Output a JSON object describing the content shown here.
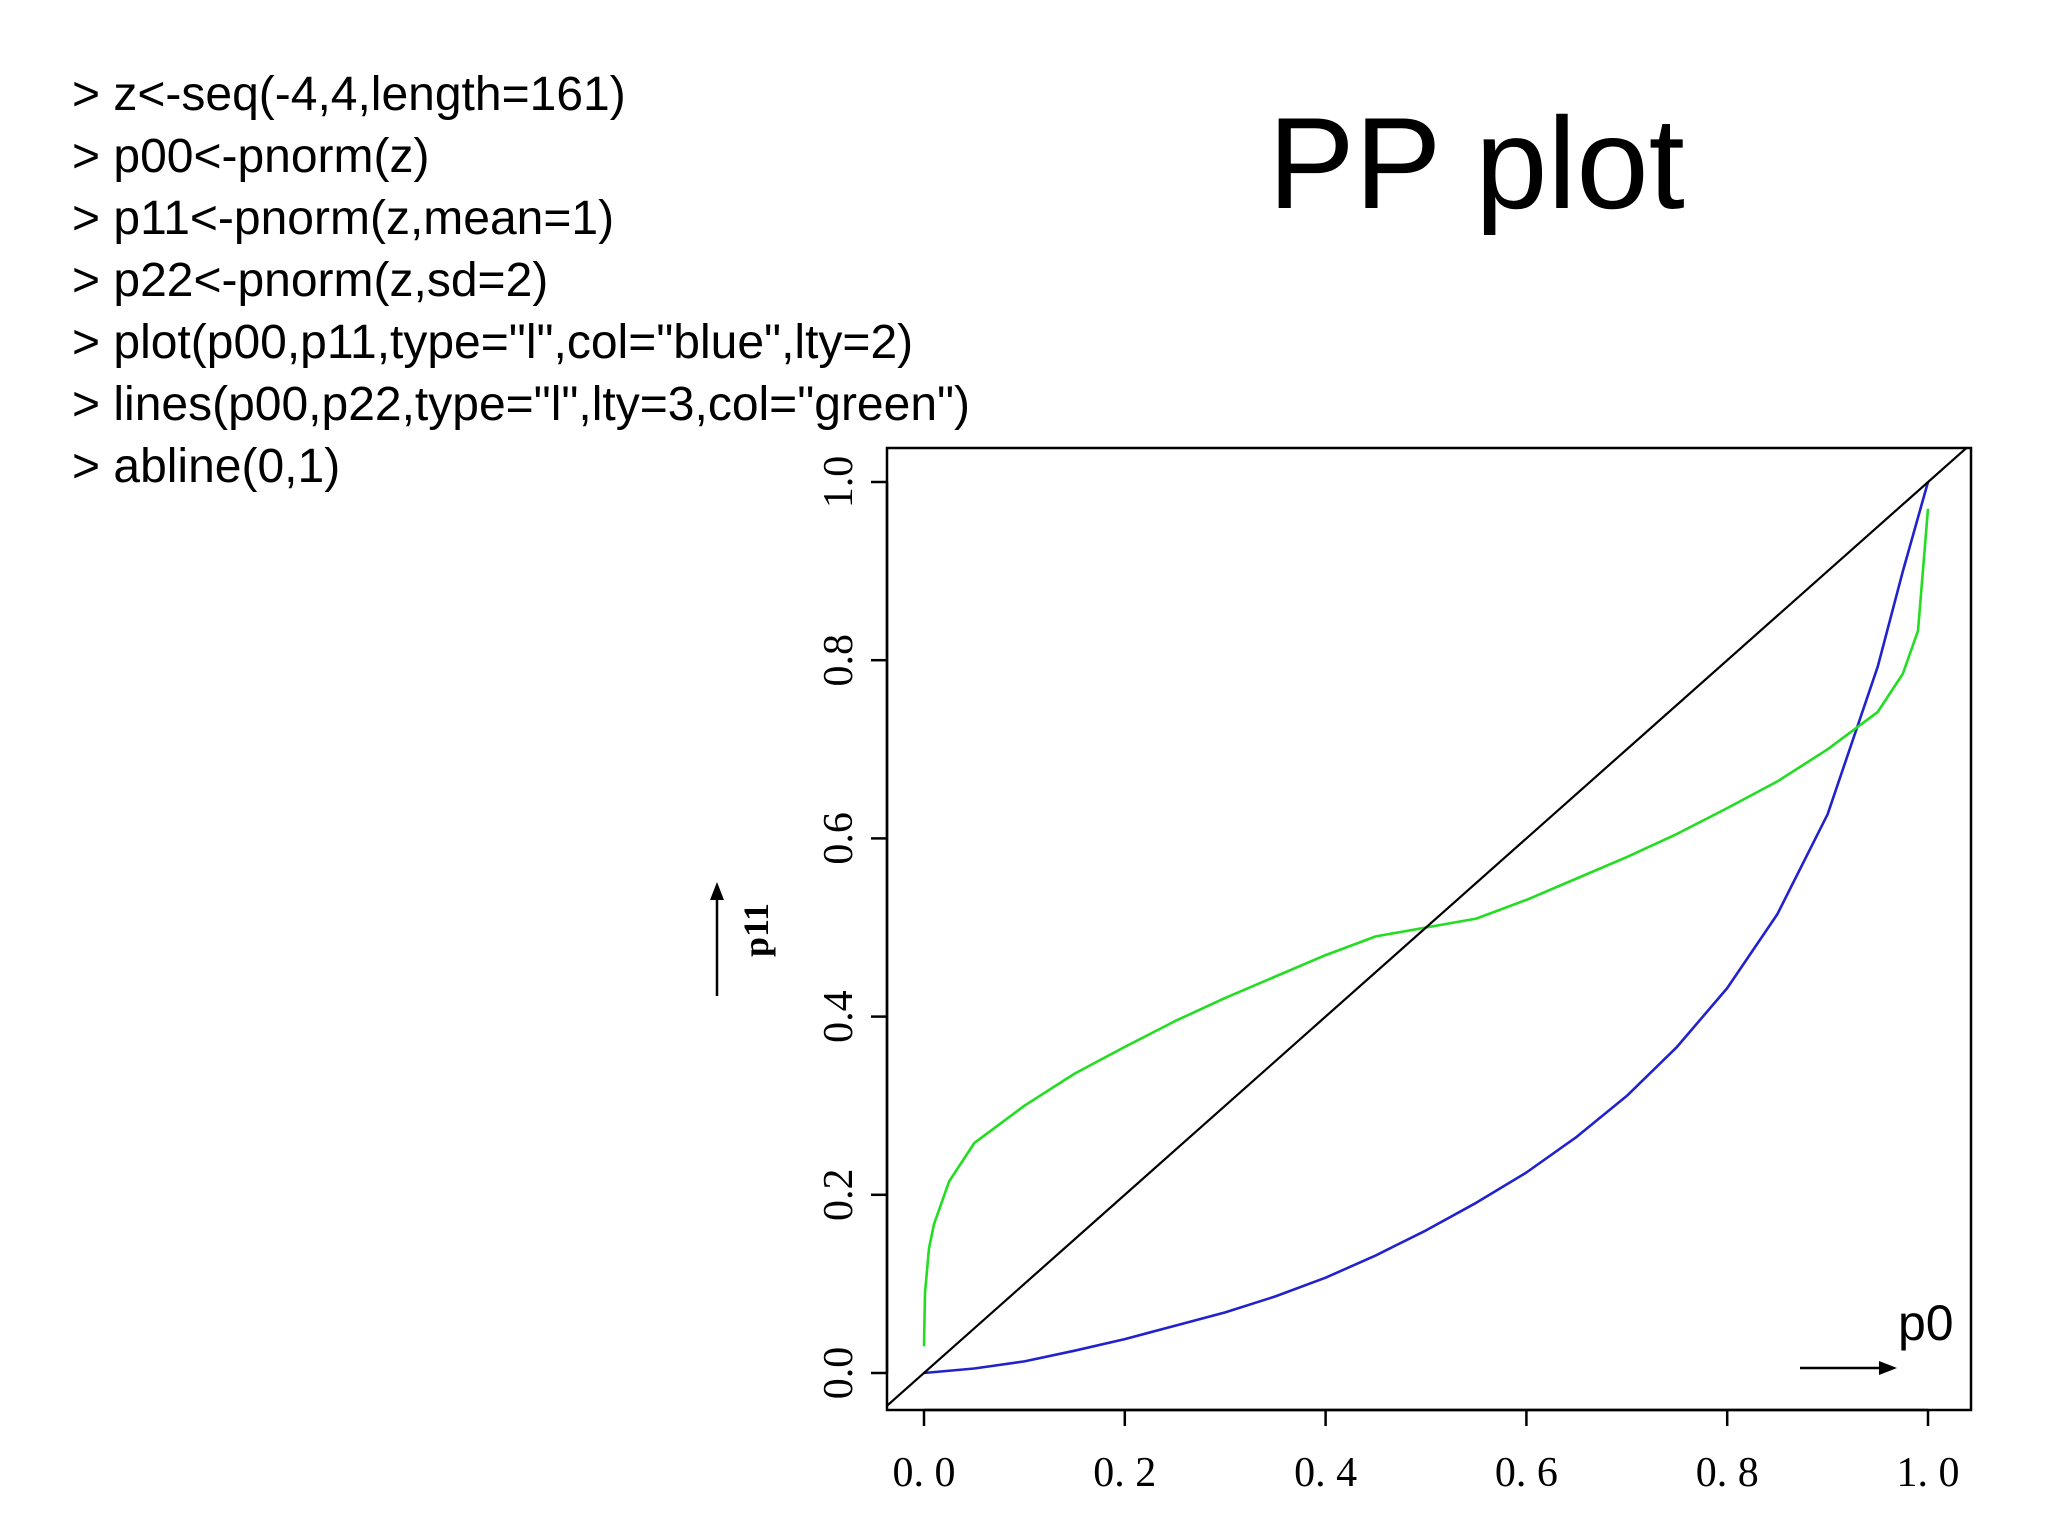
{
  "code_lines": [
    "> z<-seq(-4,4,length=161)",
    "> p00<-pnorm(z)",
    "> p11<-pnorm(z,mean=1)",
    "> p22<-pnorm(z,sd=2)",
    "> plot(p00,p11,type=\"l\",col=\"blue\",lty=2)",
    "> lines(p00,p22,type=\"l\",lty=3,col=\"green\")",
    "> abline(0,1)"
  ],
  "title": "PP plot",
  "chart_data": {
    "type": "line",
    "ylabel": "p11",
    "xlabel_annotation": "p0",
    "xlim": [
      0,
      1
    ],
    "ylim": [
      0,
      1
    ],
    "x_tick_labels": [
      "0. 0",
      "0. 2",
      "0. 4",
      "0. 6",
      "0. 8",
      "1. 0"
    ],
    "y_tick_labels": [
      "0.0",
      "0.2",
      "0.4",
      "0.6",
      "0.8",
      "1.0"
    ],
    "x_ticks": [
      0,
      0.2,
      0.4,
      0.6,
      0.8,
      1.0
    ],
    "y_ticks": [
      0,
      0.2,
      0.4,
      0.6,
      0.8,
      1.0
    ],
    "grid": false,
    "series": [
      {
        "color": "#2222cc",
        "x": [
          0,
          0.05,
          0.1,
          0.15,
          0.2,
          0.25,
          0.3,
          0.35,
          0.4,
          0.45,
          0.5,
          0.55,
          0.6,
          0.65,
          0.7,
          0.75,
          0.8,
          0.85,
          0.9,
          0.95,
          0.975,
          1.0
        ],
        "y": [
          0,
          0.005,
          0.013,
          0.025,
          0.038,
          0.053,
          0.068,
          0.086,
          0.107,
          0.132,
          0.16,
          0.191,
          0.225,
          0.265,
          0.311,
          0.366,
          0.432,
          0.515,
          0.627,
          0.793,
          0.9,
          1.0
        ]
      },
      {
        "color": "#22dd22",
        "x": [
          0,
          0.001,
          0.005,
          0.01,
          0.025,
          0.05,
          0.1,
          0.15,
          0.2,
          0.25,
          0.3,
          0.35,
          0.4,
          0.45,
          0.5,
          0.55,
          0.6,
          0.65,
          0.7,
          0.75,
          0.8,
          0.85,
          0.9,
          0.95,
          0.975,
          0.99,
          1.0
        ],
        "y": [
          0.03,
          0.09,
          0.14,
          0.167,
          0.215,
          0.258,
          0.3,
          0.336,
          0.366,
          0.395,
          0.421,
          0.445,
          0.469,
          0.49,
          0.5,
          0.51,
          0.531,
          0.555,
          0.579,
          0.605,
          0.634,
          0.664,
          0.7,
          0.742,
          0.785,
          0.833,
          0.97
        ]
      },
      {
        "color": "#000000",
        "x": [
          -0.04,
          1.04
        ],
        "y": [
          -0.04,
          1.04
        ]
      }
    ]
  }
}
